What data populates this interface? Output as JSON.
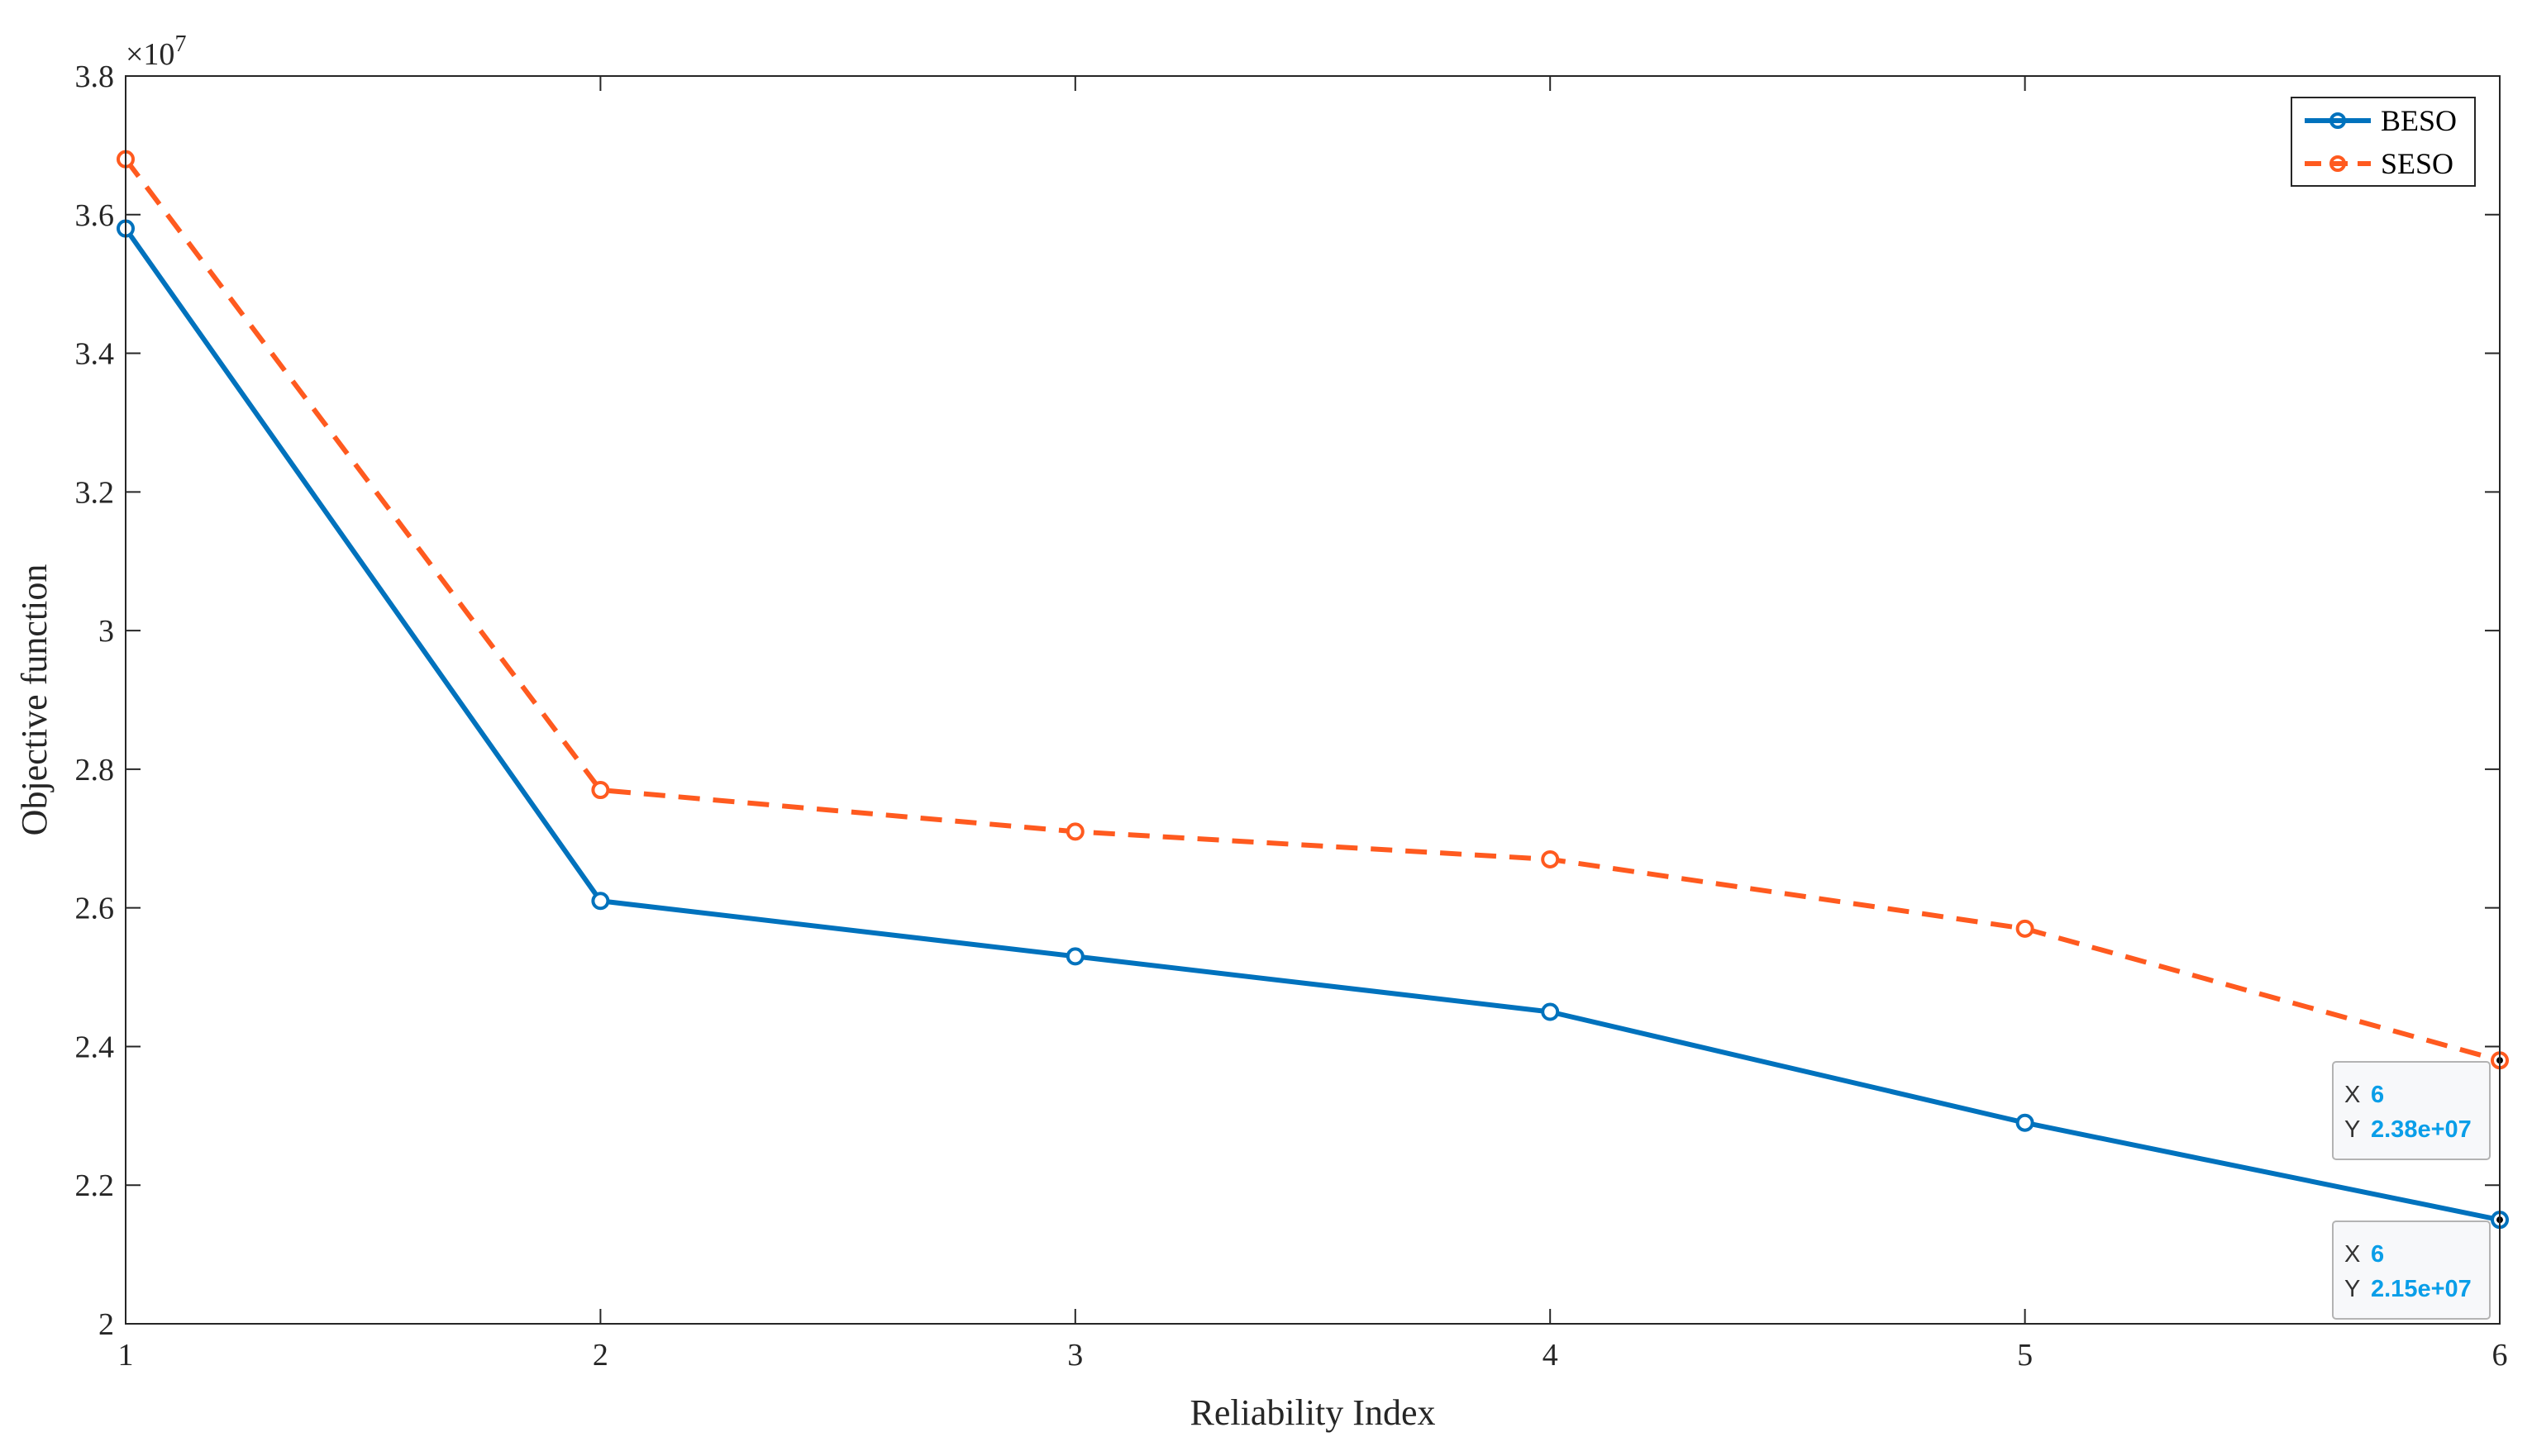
{
  "chart_data": {
    "type": "line",
    "xlabel": "Reliability Index",
    "ylabel": "Objective function",
    "exponent_label": "×10",
    "exponent_power": "7",
    "xlim": [
      1,
      6
    ],
    "ylim": [
      2.0,
      3.8
    ],
    "xticks": [
      "1",
      "2",
      "3",
      "4",
      "5",
      "6"
    ],
    "yticks": [
      "2",
      "2.2",
      "2.4",
      "2.6",
      "2.8",
      "3",
      "3.2",
      "3.4",
      "3.6",
      "3.8"
    ],
    "x": [
      1,
      2,
      3,
      4,
      5,
      6
    ],
    "series": [
      {
        "name": "BESO",
        "values": [
          3.58,
          2.61,
          2.53,
          2.45,
          2.29,
          2.15
        ],
        "color": "#0072BD",
        "style": "solid",
        "marker": "circle"
      },
      {
        "name": "SESO",
        "values": [
          3.68,
          2.77,
          2.71,
          2.67,
          2.57,
          2.38
        ],
        "color": "#FF5A1F",
        "style": "dashed",
        "marker": "circle"
      }
    ],
    "legend_position": "top-right",
    "grid": false,
    "datatips": [
      {
        "series": "SESO",
        "x_label": "X",
        "x_value": "6",
        "y_label": "Y",
        "y_value": "2.38e+07"
      },
      {
        "series": "BESO",
        "x_label": "X",
        "x_value": "6",
        "y_label": "Y",
        "y_value": "2.15e+07"
      }
    ]
  }
}
